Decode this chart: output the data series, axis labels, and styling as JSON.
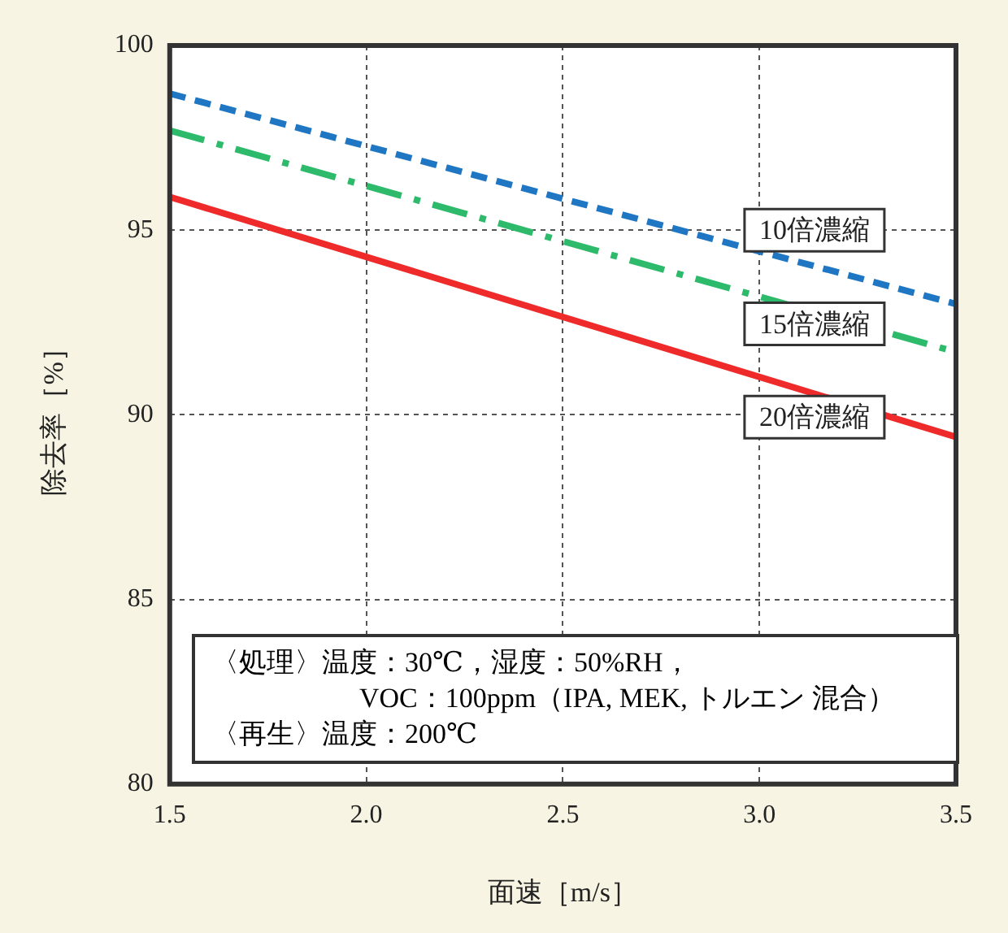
{
  "chart_data": {
    "type": "line",
    "xlabel": "面速［m/s］",
    "ylabel": "除去率［%］",
    "x": [
      1.5,
      3.5
    ],
    "series": [
      {
        "name": "10倍濃縮",
        "color": "#1f77c4",
        "values": [
          98.7,
          93.0
        ],
        "line_style": "dashed"
      },
      {
        "name": "15倍濃縮",
        "color": "#2dba6a",
        "values": [
          97.7,
          91.7
        ],
        "line_style": "dashdot"
      },
      {
        "name": "20倍濃縮",
        "color": "#ee2a2a",
        "values": [
          95.9,
          89.4
        ],
        "line_style": "solid"
      }
    ],
    "xlim": [
      1.5,
      3.5
    ],
    "xticks": [
      {
        "value": 1.5,
        "label": "1.5"
      },
      {
        "value": 2,
        "label": "2.0"
      },
      {
        "value": 2.5,
        "label": "2.5"
      },
      {
        "value": 3,
        "label": "3.0"
      },
      {
        "value": 3.5,
        "label": "3.5"
      }
    ],
    "ylim": [
      80,
      100
    ],
    "yticks": [
      80,
      85,
      90,
      95,
      100
    ],
    "grid": true,
    "legend": false,
    "marker": "none",
    "annotations": [
      "〈処理〉温度：30℃，湿度：50%RH，",
      "VOC：100ppm（IPA, MEK, トルエン 混合）",
      "〈再生〉温度：200℃"
    ]
  }
}
